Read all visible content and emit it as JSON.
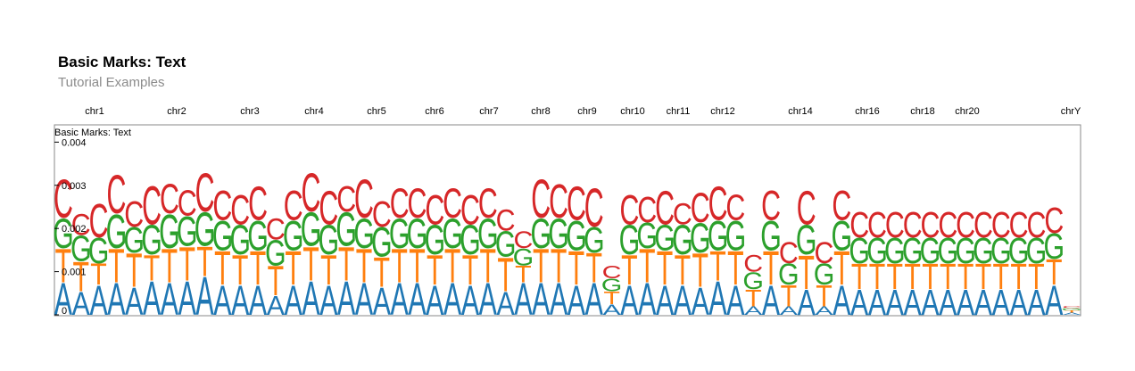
{
  "header": {
    "title": "Basic Marks: Text",
    "subtitle": "Tutorial Examples"
  },
  "chart_data": {
    "type": "stacked-text",
    "track_label": "Basic Marks: Text",
    "chromosome_labels": [
      "chr1",
      "chr2",
      "chr3",
      "chr4",
      "chr5",
      "chr6",
      "chr7",
      "chr8",
      "chr9",
      "chr10",
      "chr11",
      "chr12",
      "chr14",
      "chr16",
      "chr18",
      "chr20",
      "chrY"
    ],
    "y_ticks": [
      "0",
      "0.001",
      "0.002",
      "0.003",
      "0.004"
    ],
    "ylim": [
      0,
      0.0044
    ],
    "series": [
      {
        "name": "A",
        "color": "#1f77b4",
        "values": [
          0.00075,
          0.00055,
          0.0007,
          0.00075,
          0.00065,
          0.0008,
          0.00075,
          0.0008,
          0.0009,
          0.0007,
          0.0007,
          0.0007,
          0.00045,
          0.0007,
          0.0008,
          0.0007,
          0.0008,
          0.00075,
          0.00065,
          0.00075,
          0.00075,
          0.0007,
          0.00075,
          0.0007,
          0.00075,
          0.00055,
          0.00075,
          0.00075,
          0.00075,
          0.0007,
          0.00075,
          0.00025,
          0.0007,
          0.00075,
          0.0007,
          0.0007,
          0.00065,
          0.0008,
          0.0007,
          0.0002,
          0.0007,
          0.0002,
          0.0006,
          0.0002,
          0.0007,
          0.0006,
          0.0006,
          0.0006,
          0.0006,
          0.0006,
          0.0006,
          0.0006,
          0.0006,
          0.0006,
          0.0006,
          0.0006,
          0.0007,
          5e-05
        ]
      },
      {
        "name": "T",
        "color": "#ff7f0e",
        "values": [
          0.0008,
          0.0007,
          0.0005,
          0.0008,
          0.0008,
          0.0006,
          0.0008,
          0.0008,
          0.0007,
          0.0008,
          0.0007,
          0.0008,
          0.0007,
          0.0008,
          0.0008,
          0.0007,
          0.0008,
          0.0008,
          0.0007,
          0.0008,
          0.0008,
          0.0007,
          0.0008,
          0.0007,
          0.0008,
          0.0008,
          0.0004,
          0.0008,
          0.0008,
          0.0008,
          0.0007,
          0.0003,
          0.0007,
          0.0008,
          0.0008,
          0.0007,
          0.0008,
          0.0007,
          0.0008,
          0.0004,
          0.0008,
          0.0005,
          0.0008,
          0.0005,
          0.0008,
          0.0006,
          0.0006,
          0.0006,
          0.0006,
          0.0006,
          0.0006,
          0.0006,
          0.0006,
          0.0006,
          0.0006,
          0.0006,
          0.0006,
          5e-05
        ]
      },
      {
        "name": "G",
        "color": "#2ca02c",
        "values": [
          0.0007,
          0.0006,
          0.0006,
          0.0008,
          0.0006,
          0.0007,
          0.0008,
          0.0007,
          0.0008,
          0.0007,
          0.0007,
          0.0007,
          0.0006,
          0.0007,
          0.0008,
          0.0007,
          0.0008,
          0.0007,
          0.0007,
          0.0007,
          0.0007,
          0.0007,
          0.0007,
          0.0007,
          0.0007,
          0.0006,
          0.0004,
          0.0007,
          0.0007,
          0.0007,
          0.0006,
          0.0003,
          0.0007,
          0.0006,
          0.0006,
          0.0007,
          0.0007,
          0.0007,
          0.0007,
          0.0004,
          0.0007,
          0.0005,
          0.0007,
          0.0005,
          0.0007,
          0.0006,
          0.0006,
          0.0006,
          0.0006,
          0.0006,
          0.0006,
          0.0006,
          0.0006,
          0.0006,
          0.0006,
          0.0006,
          0.0006,
          5e-05
        ]
      },
      {
        "name": "C",
        "color": "#d62728",
        "values": [
          0.0009,
          0.0005,
          0.0008,
          0.0009,
          0.0006,
          0.0009,
          0.0007,
          0.0006,
          0.0009,
          0.0007,
          0.0007,
          0.0008,
          0.0005,
          0.0007,
          0.0009,
          0.0008,
          0.0006,
          0.0009,
          0.0006,
          0.0007,
          0.0007,
          0.0007,
          0.0007,
          0.0007,
          0.0007,
          0.0005,
          0.0004,
          0.0009,
          0.0008,
          0.0008,
          0.0009,
          0.0003,
          0.0007,
          0.0006,
          0.0008,
          0.0005,
          0.0007,
          0.0008,
          0.0006,
          0.0004,
          0.0007,
          0.0005,
          0.0008,
          0.0005,
          0.0007,
          0.0006,
          0.0006,
          0.0006,
          0.0006,
          0.0006,
          0.0006,
          0.0006,
          0.0006,
          0.0006,
          0.0006,
          0.0006,
          0.0006,
          5e-05
        ]
      }
    ]
  }
}
